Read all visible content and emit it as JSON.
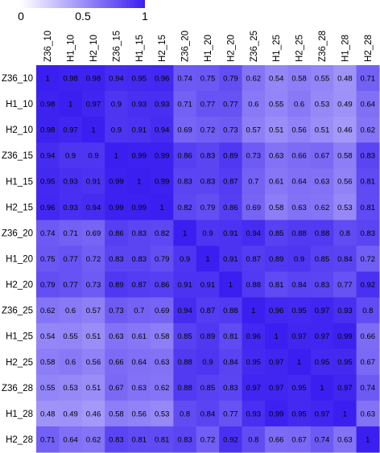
{
  "chart_data": {
    "type": "heatmap",
    "rows": [
      "Z36_10",
      "H1_10",
      "H2_10",
      "Z36_15",
      "H1_15",
      "H2_15",
      "Z36_20",
      "H1_20",
      "H2_20",
      "Z36_25",
      "H1_25",
      "H2_25",
      "Z36_28",
      "H1_28",
      "H2_28"
    ],
    "cols": [
      "Z36_10",
      "H1_10",
      "H2_10",
      "Z36_15",
      "H1_15",
      "H2_15",
      "Z36_20",
      "H1_20",
      "H2_20",
      "Z36_25",
      "H1_25",
      "H2_25",
      "Z36_28",
      "H1_28",
      "H2_28"
    ],
    "values": [
      [
        1,
        0.98,
        0.98,
        0.94,
        0.95,
        0.96,
        0.74,
        0.75,
        0.79,
        0.62,
        0.54,
        0.58,
        0.55,
        0.48,
        0.71
      ],
      [
        0.98,
        1,
        0.97,
        0.9,
        0.93,
        0.93,
        0.71,
        0.77,
        0.77,
        0.6,
        0.55,
        0.6,
        0.53,
        0.49,
        0.64
      ],
      [
        0.98,
        0.97,
        1,
        0.9,
        0.91,
        0.94,
        0.69,
        0.72,
        0.73,
        0.57,
        0.51,
        0.56,
        0.51,
        0.46,
        0.62
      ],
      [
        0.94,
        0.9,
        0.9,
        1,
        0.99,
        0.99,
        0.86,
        0.83,
        0.89,
        0.73,
        0.63,
        0.66,
        0.67,
        0.58,
        0.83
      ],
      [
        0.95,
        0.93,
        0.91,
        0.99,
        1,
        0.99,
        0.83,
        0.83,
        0.87,
        0.7,
        0.61,
        0.64,
        0.63,
        0.56,
        0.81
      ],
      [
        0.96,
        0.93,
        0.94,
        0.99,
        0.99,
        1,
        0.82,
        0.79,
        0.86,
        0.69,
        0.58,
        0.63,
        0.62,
        0.53,
        0.81
      ],
      [
        0.74,
        0.71,
        0.69,
        0.86,
        0.83,
        0.82,
        1,
        0.9,
        0.91,
        0.94,
        0.85,
        0.88,
        0.88,
        0.8,
        0.83
      ],
      [
        0.75,
        0.77,
        0.72,
        0.83,
        0.83,
        0.79,
        0.9,
        1,
        0.91,
        0.87,
        0.89,
        0.9,
        0.85,
        0.84,
        0.72
      ],
      [
        0.79,
        0.77,
        0.73,
        0.89,
        0.87,
        0.86,
        0.91,
        0.91,
        1,
        0.88,
        0.81,
        0.84,
        0.83,
        0.77,
        0.92
      ],
      [
        0.62,
        0.6,
        0.57,
        0.73,
        0.7,
        0.69,
        0.94,
        0.87,
        0.88,
        1,
        0.96,
        0.95,
        0.97,
        0.93,
        0.8
      ],
      [
        0.54,
        0.55,
        0.51,
        0.63,
        0.61,
        0.58,
        0.85,
        0.89,
        0.81,
        0.96,
        1,
        0.97,
        0.97,
        0.99,
        0.66
      ],
      [
        0.58,
        0.6,
        0.56,
        0.66,
        0.64,
        0.63,
        0.88,
        0.9,
        0.84,
        0.95,
        0.97,
        1,
        0.95,
        0.95,
        0.67
      ],
      [
        0.55,
        0.53,
        0.51,
        0.67,
        0.63,
        0.62,
        0.88,
        0.85,
        0.83,
        0.97,
        0.97,
        0.95,
        1,
        0.97,
        0.74
      ],
      [
        0.48,
        0.49,
        0.46,
        0.58,
        0.56,
        0.53,
        0.8,
        0.84,
        0.77,
        0.93,
        0.99,
        0.95,
        0.97,
        1,
        0.63
      ],
      [
        0.71,
        0.64,
        0.62,
        0.83,
        0.81,
        0.81,
        0.83,
        0.72,
        0.92,
        0.8,
        0.66,
        0.67,
        0.74,
        0.63,
        1
      ]
    ],
    "colorbar": {
      "min": 0,
      "max": 1,
      "ticks": [
        "0",
        "0.5",
        "1"
      ],
      "low_color": "#ffffff",
      "high_color": "#3a1ff0"
    },
    "legend_placement": "top-left"
  }
}
